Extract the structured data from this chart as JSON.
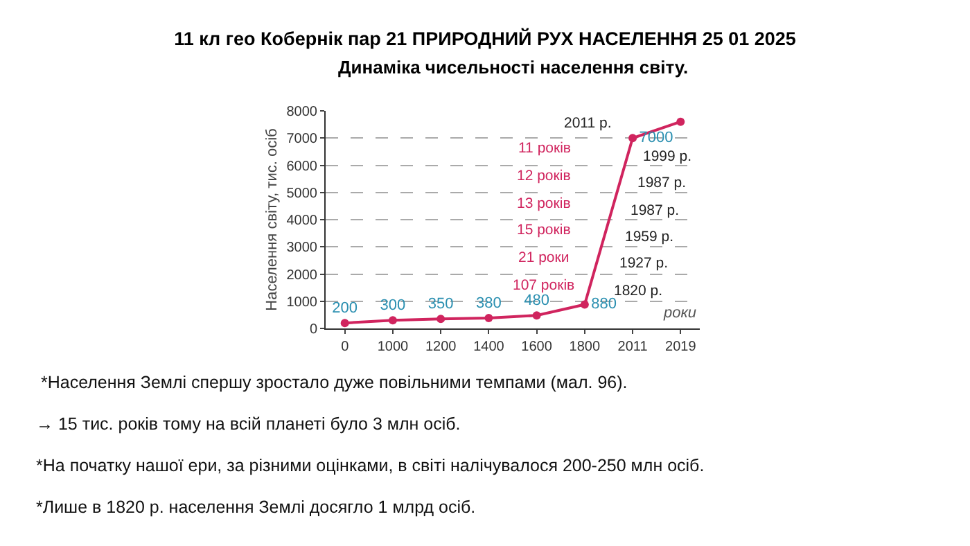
{
  "chart_data": {
    "type": "line",
    "title": "11 кл гео Кобернік пар 21 ПРИРОДНИЙ РУХ НАСЕЛЕННЯ 25 01 2025",
    "subtitle": "Динаміка чисельності населення світу.",
    "xlabel": "роки",
    "ylabel": "Населення світу, тис. осіб",
    "categories": [
      "0",
      "1000",
      "1200",
      "1400",
      "1600",
      "1800",
      "2011",
      "2019"
    ],
    "series": [
      {
        "color": "#d0245e",
        "values": [
          200,
          300,
          350,
          380,
          480,
          880,
          7000,
          7600
        ],
        "value_labels": [
          "200",
          "300",
          "350",
          "380",
          "480",
          "880",
          "7000",
          null
        ]
      }
    ],
    "ylim": [
      0,
      8000
    ],
    "yticks": [
      0,
      1000,
      2000,
      3000,
      4000,
      5000,
      6000,
      7000,
      8000
    ],
    "grid": "y",
    "line_style": "solid",
    "marker": "circle",
    "annotations": [
      "11 років",
      "12 років",
      "13 років",
      "15 років",
      "21 роки",
      "107 років",
      "2011 р.",
      "1999 р.",
      "1987 р.",
      "1987 р.",
      "1959 р.",
      "1927 р.",
      "1820 р.",
      " *Населення Землі спершу зростало дуже повільними темпами (мал. 96).",
      "→ 15 тис. років тому на всій планеті було 3 млн осіб.",
      "*На початку нашої ери, за різними оцінками, в світі налічувалося 200-250 млн осіб.",
      "*Лише в 1820 р. населення Землі досягло 1 млрд осіб."
    ]
  }
}
